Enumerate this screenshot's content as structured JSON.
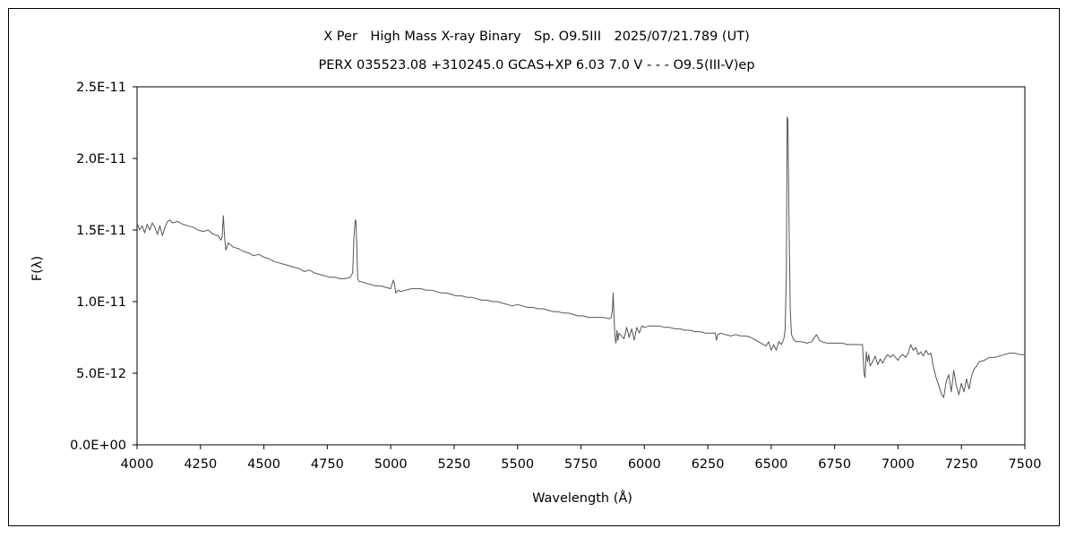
{
  "chart_data": {
    "type": "line",
    "title": "X Per　High Mass X-ray Binary　Sp. O9.5III　2025/07/21.789 (UT)",
    "subtitle": "PERX 035523.08 +310245.0 GCAS+XP 6.03 7.0 V - - - O9.5(III-V)ep",
    "xlabel": "Wavelength (Å)",
    "ylabel": "F(λ)",
    "xlim": [
      4000,
      7500
    ],
    "ylim": [
      0,
      2.5e-11
    ],
    "xticks": [
      4000,
      4250,
      4500,
      4750,
      5000,
      5250,
      5500,
      5750,
      6000,
      6250,
      6500,
      6750,
      7000,
      7250,
      7500
    ],
    "xtick_labels": [
      "4000",
      "4250",
      "4500",
      "4750",
      "5000",
      "5250",
      "5500",
      "5750",
      "6000",
      "6250",
      "6500",
      "6750",
      "7000",
      "7250",
      "7500"
    ],
    "yticks": [
      0,
      5e-12,
      1e-11,
      1.5e-11,
      2e-11,
      2.5e-11
    ],
    "ytick_labels": [
      "0.0E+00",
      "5.0E-12",
      "1.0E-11",
      "1.5E-11",
      "2.0E-11",
      "2.5E-11"
    ],
    "grid": false,
    "legend": "none",
    "line_color": "#555555",
    "series": [
      {
        "x": [
          4000,
          4010,
          4020,
          4030,
          4040,
          4050,
          4060,
          4070,
          4080,
          4090,
          4100,
          4110,
          4120,
          4130,
          4140,
          4160,
          4180,
          4200,
          4220,
          4240,
          4260,
          4280,
          4300,
          4320,
          4330,
          4335,
          4340,
          4345,
          4350,
          4360,
          4380,
          4400,
          4420,
          4440,
          4460,
          4480,
          4500,
          4520,
          4540,
          4560,
          4580,
          4600,
          4620,
          4640,
          4660,
          4680,
          4700,
          4720,
          4740,
          4760,
          4780,
          4800,
          4820,
          4840,
          4850,
          4855,
          4860,
          4863,
          4866,
          4870,
          4875,
          4880,
          4900,
          4920,
          4940,
          4960,
          4980,
          5000,
          5010,
          5015,
          5020,
          5030,
          5040,
          5060,
          5080,
          5100,
          5120,
          5140,
          5160,
          5180,
          5200,
          5220,
          5240,
          5260,
          5280,
          5300,
          5320,
          5340,
          5360,
          5380,
          5400,
          5420,
          5440,
          5460,
          5480,
          5500,
          5520,
          5540,
          5560,
          5580,
          5600,
          5620,
          5640,
          5660,
          5680,
          5700,
          5720,
          5740,
          5760,
          5780,
          5800,
          5820,
          5840,
          5860,
          5870,
          5874,
          5877,
          5880,
          5884,
          5888,
          5892,
          5896,
          5900,
          5910,
          5920,
          5930,
          5940,
          5950,
          5960,
          5970,
          5980,
          5990,
          6000,
          6020,
          6040,
          6060,
          6080,
          6100,
          6120,
          6140,
          6160,
          6180,
          6200,
          6220,
          6240,
          6260,
          6280,
          6284,
          6290,
          6300,
          6320,
          6340,
          6360,
          6380,
          6400,
          6420,
          6440,
          6460,
          6480,
          6490,
          6500,
          6510,
          6520,
          6530,
          6540,
          6550,
          6555,
          6560,
          6563,
          6566,
          6570,
          6575,
          6580,
          6590,
          6600,
          6620,
          6640,
          6660,
          6678,
          6690,
          6700,
          6720,
          6740,
          6760,
          6780,
          6800,
          6820,
          6840,
          6860,
          6866,
          6870,
          6875,
          6880,
          6885,
          6890,
          6900,
          6910,
          6920,
          6930,
          6940,
          6950,
          6960,
          6970,
          6980,
          6990,
          7000,
          7010,
          7020,
          7030,
          7040,
          7050,
          7060,
          7070,
          7080,
          7090,
          7100,
          7110,
          7120,
          7130,
          7140,
          7150,
          7160,
          7170,
          7180,
          7190,
          7200,
          7210,
          7220,
          7230,
          7240,
          7250,
          7260,
          7270,
          7280,
          7290,
          7300,
          7310,
          7320,
          7340,
          7360,
          7380,
          7400,
          7420,
          7440,
          7460,
          7480,
          7500
        ],
        "y": [
          1.55e-11,
          1.5e-11,
          1.53e-11,
          1.48e-11,
          1.54e-11,
          1.5e-11,
          1.55e-11,
          1.52e-11,
          1.47e-11,
          1.53e-11,
          1.46e-11,
          1.52e-11,
          1.56e-11,
          1.57e-11,
          1.55e-11,
          1.56e-11,
          1.54e-11,
          1.53e-11,
          1.52e-11,
          1.5e-11,
          1.49e-11,
          1.5e-11,
          1.47e-11,
          1.46e-11,
          1.43e-11,
          1.45e-11,
          1.6e-11,
          1.45e-11,
          1.36e-11,
          1.41e-11,
          1.38e-11,
          1.37e-11,
          1.35e-11,
          1.34e-11,
          1.32e-11,
          1.33e-11,
          1.31e-11,
          1.3e-11,
          1.28e-11,
          1.27e-11,
          1.26e-11,
          1.25e-11,
          1.24e-11,
          1.23e-11,
          1.21e-11,
          1.22e-11,
          1.2e-11,
          1.19e-11,
          1.18e-11,
          1.17e-11,
          1.17e-11,
          1.16e-11,
          1.16e-11,
          1.17e-11,
          1.2e-11,
          1.45e-11,
          1.57e-11,
          1.56e-11,
          1.4e-11,
          1.16e-11,
          1.14e-11,
          1.14e-11,
          1.13e-11,
          1.12e-11,
          1.11e-11,
          1.11e-11,
          1.1e-11,
          1.09e-11,
          1.15e-11,
          1.12e-11,
          1.06e-11,
          1.08e-11,
          1.07e-11,
          1.08e-11,
          1.09e-11,
          1.09e-11,
          1.09e-11,
          1.08e-11,
          1.08e-11,
          1.07e-11,
          1.06e-11,
          1.06e-11,
          1.05e-11,
          1.04e-11,
          1.04e-11,
          1.03e-11,
          1.03e-11,
          1.02e-11,
          1.01e-11,
          1.01e-11,
          1e-11,
          1e-11,
          9.9e-12,
          9.8e-12,
          9.7e-12,
          9.8e-12,
          9.7e-12,
          9.6e-12,
          9.6e-12,
          9.5e-12,
          9.5e-12,
          9.4e-12,
          9.3e-12,
          9.3e-12,
          9.2e-12,
          9.2e-12,
          9.1e-12,
          9e-12,
          9e-12,
          8.9e-12,
          8.9e-12,
          8.9e-12,
          8.9e-12,
          8.8e-12,
          8.9e-12,
          9.4e-12,
          1.06e-11,
          9.2e-12,
          7.6e-12,
          7.1e-12,
          8e-12,
          7.3e-12,
          7.8e-12,
          7.6e-12,
          7.4e-12,
          8.2e-12,
          7.5e-12,
          8.1e-12,
          7.3e-12,
          8.2e-12,
          7.8e-12,
          8.3e-12,
          8.2e-12,
          8.3e-12,
          8.3e-12,
          8.3e-12,
          8.2e-12,
          8.2e-12,
          8.1e-12,
          8.1e-12,
          8e-12,
          8e-12,
          7.9e-12,
          7.9e-12,
          7.8e-12,
          7.8e-12,
          7.8e-12,
          7.3e-12,
          7.7e-12,
          7.8e-12,
          7.7e-12,
          7.6e-12,
          7.7e-12,
          7.6e-12,
          7.6e-12,
          7.5e-12,
          7.3e-12,
          7.1e-12,
          6.9e-12,
          7.2e-12,
          6.6e-12,
          7e-12,
          6.6e-12,
          7.2e-12,
          7e-12,
          7.4e-12,
          8e-12,
          1.2e-11,
          2.29e-11,
          2.27e-11,
          1.6e-11,
          9.5e-12,
          7.7e-12,
          7.3e-12,
          7.2e-12,
          7.2e-12,
          7.1e-12,
          7.2e-12,
          7.7e-12,
          7.3e-12,
          7.2e-12,
          7.1e-12,
          7.1e-12,
          7.1e-12,
          7.1e-12,
          7e-12,
          7e-12,
          7e-12,
          7e-12,
          5e-12,
          4.7e-12,
          6.5e-12,
          5.8e-12,
          6.3e-12,
          5.5e-12,
          5.8e-12,
          6.2e-12,
          5.6e-12,
          6e-12,
          5.7e-12,
          6.1e-12,
          6.3e-12,
          6.1e-12,
          6.3e-12,
          6.1e-12,
          5.9e-12,
          6.2e-12,
          6.3e-12,
          6.1e-12,
          6.4e-12,
          7e-12,
          6.6e-12,
          6.8e-12,
          6.3e-12,
          6.5e-12,
          6.2e-12,
          6.6e-12,
          6.3e-12,
          6.4e-12,
          5.4e-12,
          4.7e-12,
          4.2e-12,
          3.6e-12,
          3.3e-12,
          4.4e-12,
          4.9e-12,
          3.7e-12,
          5.2e-12,
          4.1e-12,
          3.5e-12,
          4.3e-12,
          3.7e-12,
          4.6e-12,
          3.9e-12,
          4.8e-12,
          5.3e-12,
          5.5e-12,
          5.8e-12,
          5.9e-12,
          6.1e-12,
          6.1e-12,
          6.2e-12,
          6.3e-12,
          6.4e-12,
          6.4e-12,
          6.3e-12,
          6.3e-12
        ]
      }
    ]
  }
}
